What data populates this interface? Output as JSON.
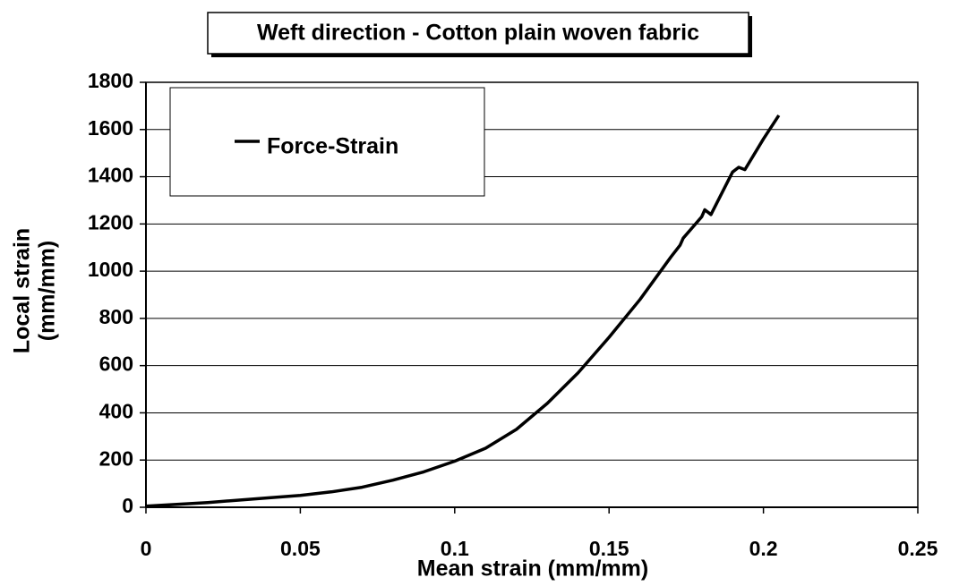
{
  "chart_data": {
    "type": "line",
    "title": "Weft direction - Cotton plain woven fabric",
    "x_label": "Mean strain (mm/mm)",
    "y_label_lines": [
      "Local strain",
      "(mm/mm)"
    ],
    "x": [
      0,
      0.02,
      0.04,
      0.05,
      0.06,
      0.07,
      0.08,
      0.09,
      0.1,
      0.11,
      0.12,
      0.13,
      0.14,
      0.15,
      0.16,
      0.17,
      0.173,
      0.174,
      0.18,
      0.181,
      0.183,
      0.19,
      0.192,
      0.194,
      0.2,
      0.205
    ],
    "series": [
      {
        "name": "Force-Strain",
        "color": "#000000",
        "values": [
          5,
          20,
          40,
          50,
          65,
          85,
          115,
          150,
          195,
          250,
          330,
          440,
          570,
          720,
          880,
          1060,
          1110,
          1140,
          1230,
          1260,
          1240,
          1420,
          1440,
          1430,
          1560,
          1660
        ]
      }
    ],
    "xlim": [
      0,
      0.25
    ],
    "xticks": [
      0,
      0.05,
      0.1,
      0.15,
      0.2,
      0.25
    ],
    "ylim": [
      0,
      1800
    ],
    "yticks": [
      0,
      200,
      400,
      600,
      800,
      1000,
      1200,
      1400,
      1600,
      1800
    ],
    "grid": true,
    "legend": "top-left"
  }
}
